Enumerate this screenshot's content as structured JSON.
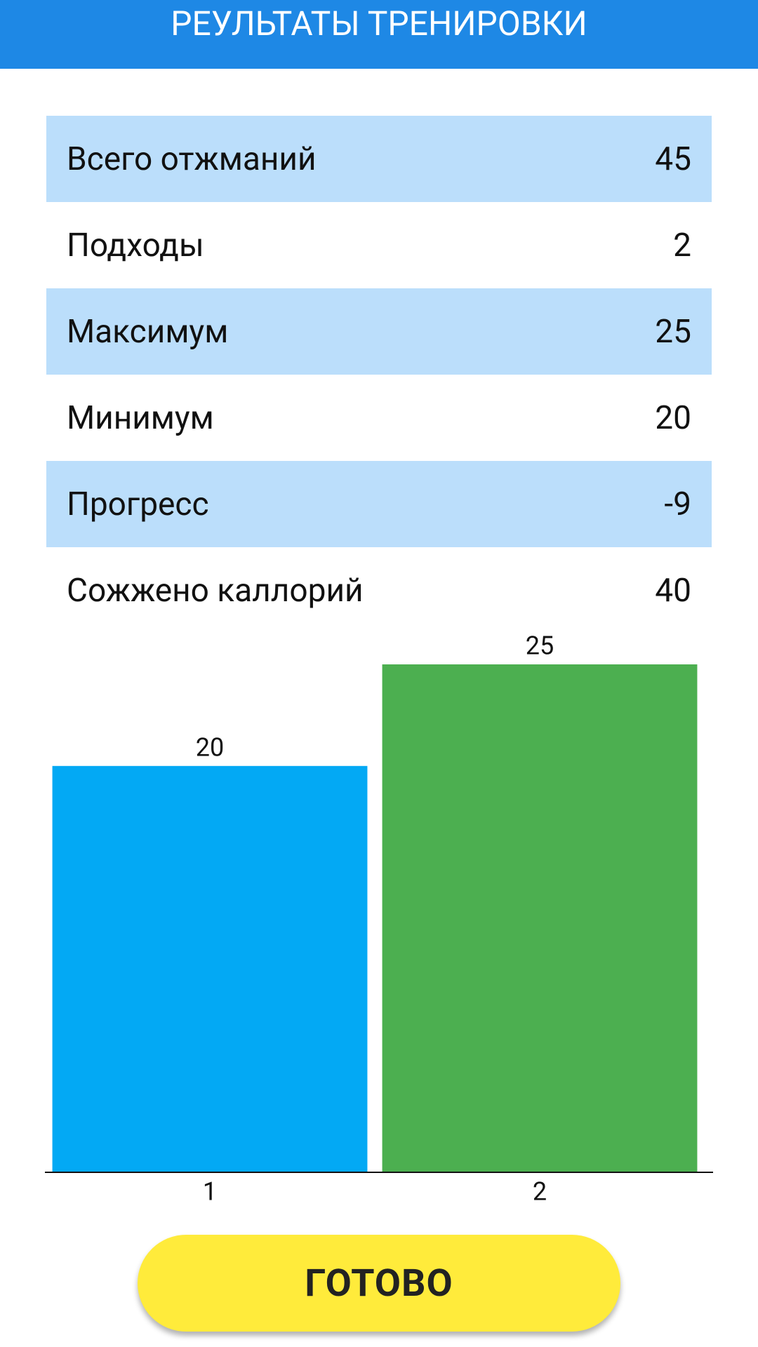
{
  "header": {
    "title": "РЕУЛЬТАТЫ ТРЕНИРОВКИ"
  },
  "stats": [
    {
      "label": "Всего отжманий",
      "value": 45
    },
    {
      "label": "Подходы",
      "value": 2
    },
    {
      "label": "Максимум",
      "value": 25
    },
    {
      "label": "Минимум",
      "value": 20
    },
    {
      "label": "Прогресс",
      "value": -9
    },
    {
      "label": "Сожжено каллорий",
      "value": 40
    }
  ],
  "chart_data": {
    "type": "bar",
    "categories": [
      "1",
      "2"
    ],
    "values": [
      20,
      25
    ],
    "colors": [
      "#03a9f4",
      "#4caf50"
    ]
  },
  "button": {
    "label": "ГОТОВО"
  }
}
